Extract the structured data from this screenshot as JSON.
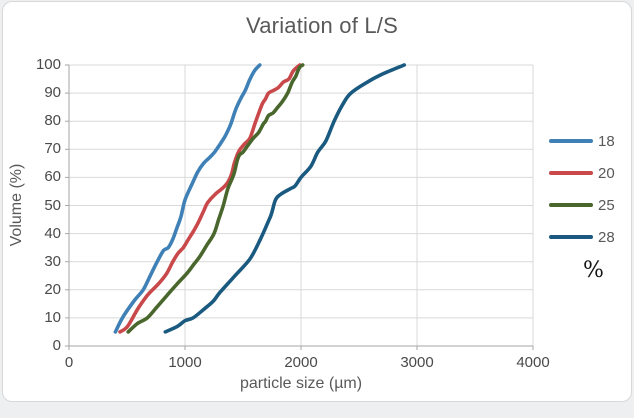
{
  "chart_data": {
    "type": "line",
    "title": "Variation of L/S",
    "xlabel": "particle size (µm)",
    "ylabel": "Volume (%)",
    "xlim": [
      0,
      4000
    ],
    "ylim": [
      0,
      100
    ],
    "x_ticks": [
      0,
      1000,
      2000,
      3000,
      4000
    ],
    "y_ticks": [
      0,
      10,
      20,
      30,
      40,
      50,
      60,
      70,
      80,
      90,
      100
    ],
    "grid": true,
    "legend_position": "right",
    "legend_title": "%",
    "colors": {
      "grid": "#d9d9d9",
      "axis": "#a6a6a6",
      "title_text": "#595959",
      "tick_text": "#4a4a4a"
    },
    "series": [
      {
        "name": "18",
        "color": "#3F81B6",
        "points": [
          [
            400,
            5
          ],
          [
            460,
            10
          ],
          [
            560,
            16
          ],
          [
            640,
            20
          ],
          [
            700,
            25
          ],
          [
            760,
            30
          ],
          [
            815,
            34
          ],
          [
            855,
            35
          ],
          [
            895,
            38
          ],
          [
            930,
            42
          ],
          [
            965,
            46
          ],
          [
            1000,
            52
          ],
          [
            1065,
            58
          ],
          [
            1110,
            62
          ],
          [
            1160,
            65
          ],
          [
            1210,
            67
          ],
          [
            1255,
            69
          ],
          [
            1305,
            72
          ],
          [
            1350,
            75
          ],
          [
            1395,
            79
          ],
          [
            1435,
            84
          ],
          [
            1480,
            88
          ],
          [
            1520,
            91
          ],
          [
            1560,
            95
          ],
          [
            1600,
            98
          ],
          [
            1645,
            100
          ]
        ]
      },
      {
        "name": "20",
        "color": "#C9494B",
        "points": [
          [
            440,
            5
          ],
          [
            505,
            7
          ],
          [
            590,
            13
          ],
          [
            675,
            18
          ],
          [
            745,
            21
          ],
          [
            790,
            23
          ],
          [
            845,
            26
          ],
          [
            895,
            30
          ],
          [
            940,
            33
          ],
          [
            985,
            35
          ],
          [
            1030,
            38
          ],
          [
            1075,
            41
          ],
          [
            1115,
            44
          ],
          [
            1160,
            48
          ],
          [
            1195,
            51
          ],
          [
            1260,
            54
          ],
          [
            1320,
            56
          ],
          [
            1365,
            58
          ],
          [
            1400,
            61
          ],
          [
            1425,
            65
          ],
          [
            1450,
            68
          ],
          [
            1475,
            70
          ],
          [
            1515,
            72
          ],
          [
            1560,
            74
          ],
          [
            1610,
            80
          ],
          [
            1665,
            86
          ],
          [
            1695,
            88
          ],
          [
            1720,
            90
          ],
          [
            1765,
            91
          ],
          [
            1805,
            92
          ],
          [
            1850,
            94
          ],
          [
            1895,
            95
          ],
          [
            1935,
            98
          ],
          [
            1990,
            100
          ]
        ]
      },
      {
        "name": "25",
        "color": "#49672D",
        "points": [
          [
            510,
            5
          ],
          [
            590,
            8
          ],
          [
            675,
            10
          ],
          [
            760,
            14
          ],
          [
            845,
            18
          ],
          [
            930,
            22
          ],
          [
            1020,
            26
          ],
          [
            1075,
            29
          ],
          [
            1130,
            32
          ],
          [
            1190,
            36
          ],
          [
            1250,
            40
          ],
          [
            1290,
            45
          ],
          [
            1330,
            50
          ],
          [
            1370,
            56
          ],
          [
            1420,
            61
          ],
          [
            1450,
            66
          ],
          [
            1470,
            68
          ],
          [
            1500,
            69
          ],
          [
            1535,
            71
          ],
          [
            1590,
            74
          ],
          [
            1635,
            76
          ],
          [
            1675,
            79
          ],
          [
            1695,
            80
          ],
          [
            1720,
            82
          ],
          [
            1760,
            83
          ],
          [
            1800,
            85
          ],
          [
            1840,
            87
          ],
          [
            1885,
            90
          ],
          [
            1925,
            94
          ],
          [
            1955,
            96
          ],
          [
            1985,
            99
          ],
          [
            2015,
            100
          ]
        ]
      },
      {
        "name": "28",
        "color": "#1A5A80",
        "points": [
          [
            830,
            5
          ],
          [
            935,
            7
          ],
          [
            1000,
            9
          ],
          [
            1070,
            10
          ],
          [
            1160,
            13
          ],
          [
            1245,
            16
          ],
          [
            1300,
            19
          ],
          [
            1430,
            25
          ],
          [
            1560,
            31
          ],
          [
            1650,
            38
          ],
          [
            1715,
            44
          ],
          [
            1745,
            47
          ],
          [
            1780,
            52
          ],
          [
            1825,
            54
          ],
          [
            1910,
            56
          ],
          [
            1950,
            57
          ],
          [
            2000,
            60
          ],
          [
            2085,
            64
          ],
          [
            2145,
            69
          ],
          [
            2215,
            73
          ],
          [
            2285,
            80
          ],
          [
            2360,
            86
          ],
          [
            2430,
            90
          ],
          [
            2575,
            94
          ],
          [
            2715,
            97
          ],
          [
            2890,
            100
          ]
        ]
      }
    ]
  }
}
